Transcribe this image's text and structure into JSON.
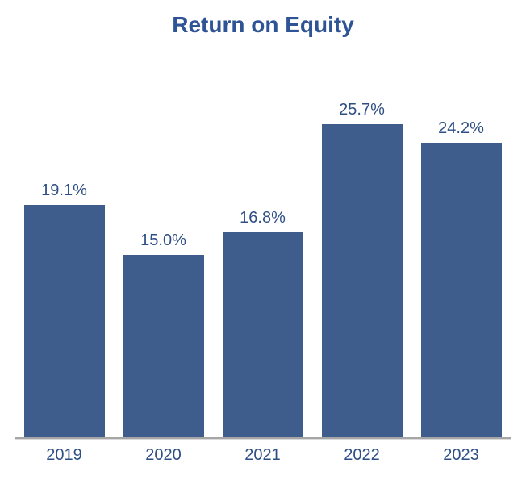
{
  "chart_data": {
    "type": "bar",
    "title": "Return on Equity",
    "categories": [
      "2019",
      "2020",
      "2021",
      "2022",
      "2023"
    ],
    "values": [
      19.1,
      15.0,
      16.8,
      25.7,
      24.2
    ],
    "value_labels": [
      "19.1%",
      "15.0%",
      "16.8%",
      "25.7%",
      "24.2%"
    ],
    "xlabel": "",
    "ylabel": "",
    "grid": false,
    "legend": false,
    "colors": {
      "bar": "#3F5D8C",
      "title": "#2F5496",
      "label": "#2E4F85",
      "axis_line": "#A6A6A6",
      "axis_line_shadow": "#DADADA"
    }
  }
}
